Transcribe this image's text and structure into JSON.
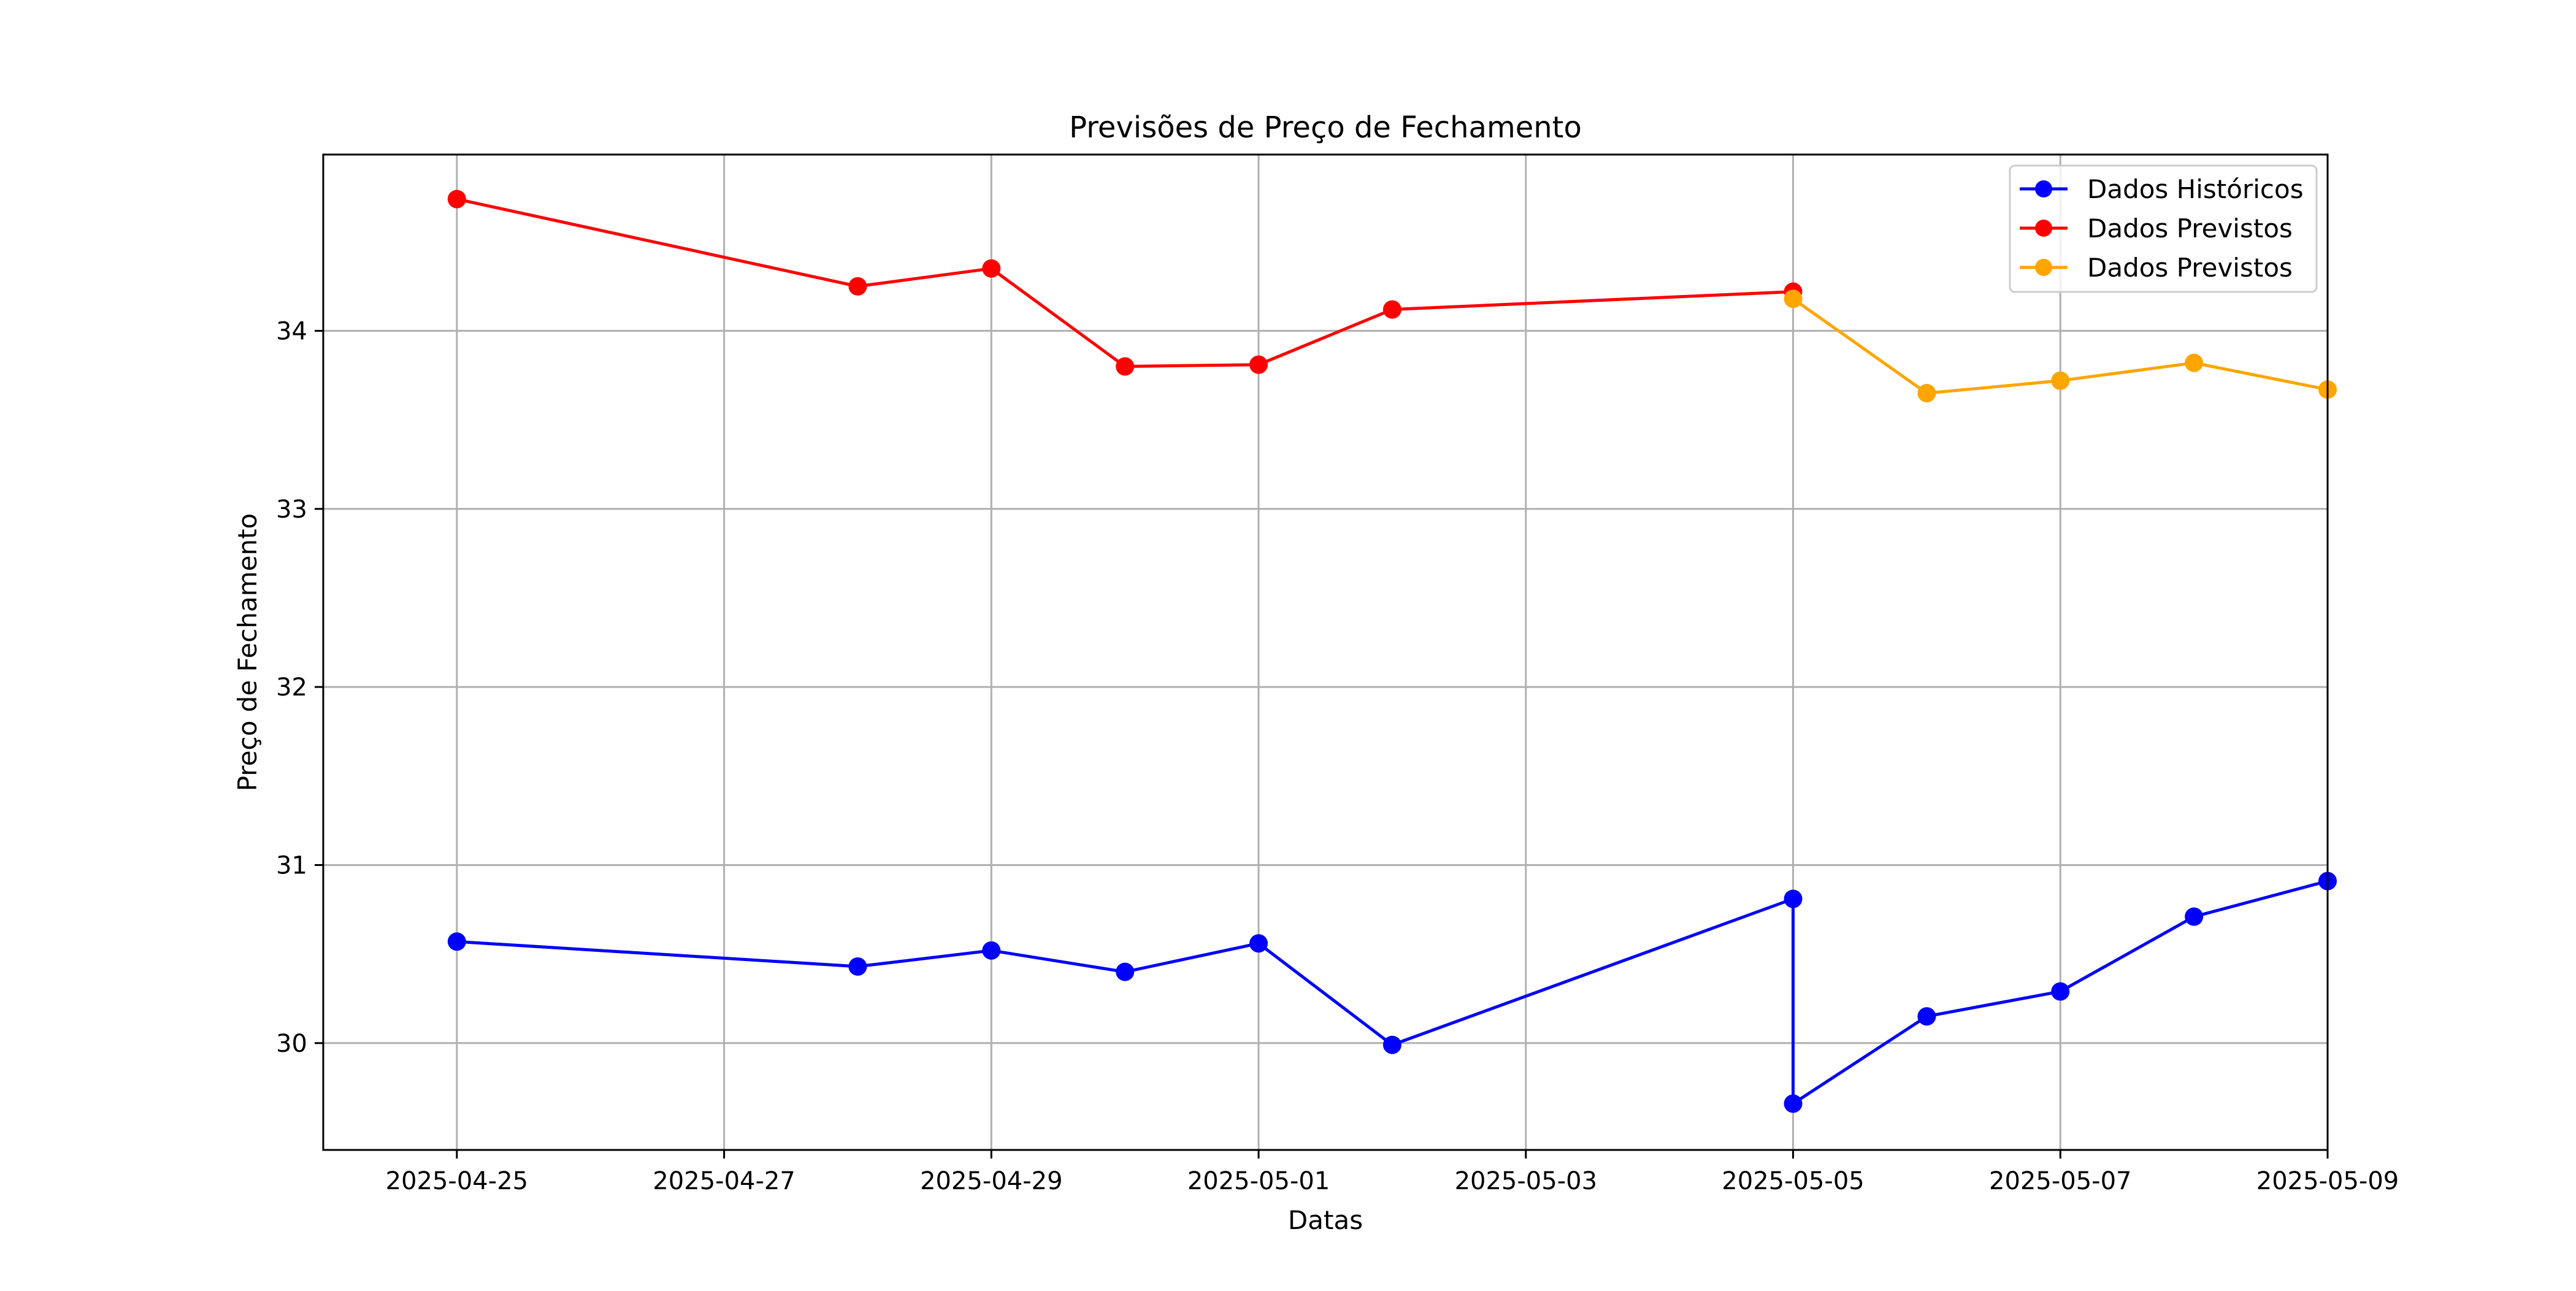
{
  "chart_data": {
    "type": "line",
    "title": "Previsões de Preço de Fechamento",
    "xlabel": "Datas",
    "ylabel": "Preço de Fechamento",
    "x_axis_type": "date",
    "xlim": [
      "2025-04-24",
      "2025-05-09"
    ],
    "ylim": [
      29.4,
      34.99
    ],
    "x_ticks": [
      "2025-04-25",
      "2025-04-27",
      "2025-04-29",
      "2025-05-01",
      "2025-05-03",
      "2025-05-05",
      "2025-05-07",
      "2025-05-09"
    ],
    "y_ticks": [
      30,
      31,
      32,
      33,
      34
    ],
    "grid": true,
    "legend_position": "top-right",
    "series": [
      {
        "name": "Dados Históricos",
        "color": "#0000ff",
        "marker": "circle",
        "points": [
          {
            "x": "2025-04-25",
            "y": 30.57
          },
          {
            "x": "2025-04-28",
            "y": 30.43
          },
          {
            "x": "2025-04-29",
            "y": 30.52
          },
          {
            "x": "2025-04-30",
            "y": 30.4
          },
          {
            "x": "2025-05-01",
            "y": 30.56
          },
          {
            "x": "2025-05-02",
            "y": 29.99
          },
          {
            "x": "2025-05-05",
            "y": 30.81
          },
          {
            "x": "2025-05-05",
            "y": 29.66
          },
          {
            "x": "2025-05-06",
            "y": 30.15
          },
          {
            "x": "2025-05-07",
            "y": 30.29
          },
          {
            "x": "2025-05-08",
            "y": 30.71
          },
          {
            "x": "2025-05-09",
            "y": 30.91
          }
        ]
      },
      {
        "name": "Dados Previstos",
        "color": "#ff0000",
        "marker": "circle",
        "points": [
          {
            "x": "2025-04-25",
            "y": 34.74
          },
          {
            "x": "2025-04-28",
            "y": 34.25
          },
          {
            "x": "2025-04-29",
            "y": 34.35
          },
          {
            "x": "2025-04-30",
            "y": 33.8
          },
          {
            "x": "2025-05-01",
            "y": 33.81
          },
          {
            "x": "2025-05-02",
            "y": 34.12
          },
          {
            "x": "2025-05-05",
            "y": 34.22
          }
        ]
      },
      {
        "name": "Dados Previstos",
        "color": "#ffa500",
        "marker": "circle",
        "points": [
          {
            "x": "2025-05-05",
            "y": 34.18
          },
          {
            "x": "2025-05-06",
            "y": 33.65
          },
          {
            "x": "2025-05-07",
            "y": 33.72
          },
          {
            "x": "2025-05-08",
            "y": 33.82
          },
          {
            "x": "2025-05-09",
            "y": 33.67
          }
        ]
      }
    ]
  }
}
